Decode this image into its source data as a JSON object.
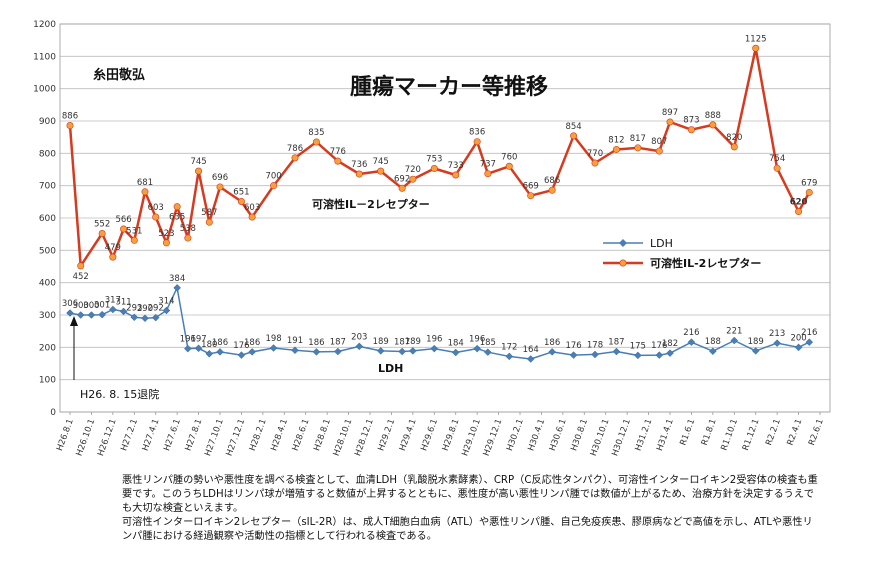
{
  "chart_data": {
    "type": "line",
    "title": "腫瘍マーカー等推移",
    "patient_name": "糸田敬弘",
    "ylim": [
      0,
      1200
    ],
    "yticks": [
      0,
      100,
      200,
      300,
      400,
      500,
      600,
      700,
      800,
      900,
      1000,
      1100,
      1200
    ],
    "grid": true,
    "legend_position": "right",
    "categories": [
      "H26.8.1",
      "H26.10.1",
      "H26.12.1",
      "H27.2.1",
      "H27.4.1",
      "H27.6.1",
      "H27.8.1",
      "H27.10.1",
      "H27.12.1",
      "H28.2.1",
      "H28.4.1",
      "H28.6.1",
      "H28.8.1",
      "H28.10.1",
      "H28.12.1",
      "H29.2.1",
      "H29.4.1",
      "H29.6.1",
      "H29.8.1",
      "H29.10.1",
      "H29.12.1",
      "H30.2.1",
      "H30.4.1",
      "H30.6.1",
      "H30.8.1",
      "H30.10.1",
      "H30.12.1",
      "H31.2.1",
      "H31.4.1",
      "R1.6.1",
      "R1.8.1",
      "R1.10.1",
      "R1.12.1",
      "R2.2.1",
      "R2.4.1",
      "R2.6.1"
    ],
    "series": [
      {
        "name": "LDH",
        "color": "#4a7fb5",
        "line_label": "LDH",
        "points": [
          {
            "x": 0,
            "y": 306
          },
          {
            "x": 0.5,
            "y": 300
          },
          {
            "x": 1,
            "y": 300
          },
          {
            "x": 1.5,
            "y": 301
          },
          {
            "x": 2,
            "y": 317
          },
          {
            "x": 2.5,
            "y": 311
          },
          {
            "x": 3,
            "y": 293
          },
          {
            "x": 3.5,
            "y": 290
          },
          {
            "x": 4,
            "y": 292
          },
          {
            "x": 4.5,
            "y": 314
          },
          {
            "x": 5,
            "y": 384
          },
          {
            "x": 5.5,
            "y": 196
          },
          {
            "x": 6,
            "y": 197
          },
          {
            "x": 6.5,
            "y": 180
          },
          {
            "x": 7,
            "y": 186
          },
          {
            "x": 8,
            "y": 176
          },
          {
            "x": 8.5,
            "y": 186
          },
          {
            "x": 9.5,
            "y": 198
          },
          {
            "x": 10.5,
            "y": 191
          },
          {
            "x": 11.5,
            "y": 186
          },
          {
            "x": 12.5,
            "y": 187
          },
          {
            "x": 13.5,
            "y": 203
          },
          {
            "x": 14.5,
            "y": 189
          },
          {
            "x": 15.5,
            "y": 187
          },
          {
            "x": 16,
            "y": 189
          },
          {
            "x": 17,
            "y": 196
          },
          {
            "x": 18,
            "y": 184
          },
          {
            "x": 19,
            "y": 196
          },
          {
            "x": 19.5,
            "y": 185
          },
          {
            "x": 20.5,
            "y": 172
          },
          {
            "x": 21.5,
            "y": 164
          },
          {
            "x": 22.5,
            "y": 186
          },
          {
            "x": 23.5,
            "y": 176
          },
          {
            "x": 24.5,
            "y": 178
          },
          {
            "x": 25.5,
            "y": 187
          },
          {
            "x": 26.5,
            "y": 175
          },
          {
            "x": 27.5,
            "y": 176
          },
          {
            "x": 28,
            "y": 182
          },
          {
            "x": 29,
            "y": 216
          },
          {
            "x": 30,
            "y": 188
          },
          {
            "x": 31,
            "y": 221
          },
          {
            "x": 32,
            "y": 189
          },
          {
            "x": 33,
            "y": 213
          },
          {
            "x": 34,
            "y": 200
          },
          {
            "x": 34.5,
            "y": 216
          }
        ]
      },
      {
        "name": "可溶性IL-2レセプター",
        "color": "#d63a1f",
        "line_label": "可溶性IL－2レセプター",
        "points": [
          {
            "x": 0,
            "y": 886
          },
          {
            "x": 0.5,
            "y": 452
          },
          {
            "x": 1.5,
            "y": 552
          },
          {
            "x": 2,
            "y": 479
          },
          {
            "x": 2.5,
            "y": 566
          },
          {
            "x": 3,
            "y": 531
          },
          {
            "x": 3.5,
            "y": 681
          },
          {
            "x": 4,
            "y": 603
          },
          {
            "x": 4.5,
            "y": 523
          },
          {
            "x": 5,
            "y": 635
          },
          {
            "x": 5.5,
            "y": 538
          },
          {
            "x": 6,
            "y": 745
          },
          {
            "x": 6.5,
            "y": 587
          },
          {
            "x": 7,
            "y": 696
          },
          {
            "x": 8,
            "y": 651
          },
          {
            "x": 8.5,
            "y": 603
          },
          {
            "x": 9.5,
            "y": 700
          },
          {
            "x": 10.5,
            "y": 786
          },
          {
            "x": 11.5,
            "y": 835
          },
          {
            "x": 12.5,
            "y": 776
          },
          {
            "x": 13.5,
            "y": 736
          },
          {
            "x": 14.5,
            "y": 745
          },
          {
            "x": 15.5,
            "y": 692
          },
          {
            "x": 16,
            "y": 720
          },
          {
            "x": 17,
            "y": 753
          },
          {
            "x": 18,
            "y": 733
          },
          {
            "x": 19,
            "y": 836
          },
          {
            "x": 19.5,
            "y": 737
          },
          {
            "x": 20.5,
            "y": 760
          },
          {
            "x": 21.5,
            "y": 669
          },
          {
            "x": 22.5,
            "y": 686
          },
          {
            "x": 23.5,
            "y": 854
          },
          {
            "x": 24.5,
            "y": 770
          },
          {
            "x": 25.5,
            "y": 812
          },
          {
            "x": 26.5,
            "y": 817
          },
          {
            "x": 27.5,
            "y": 807
          },
          {
            "x": 28,
            "y": 897
          },
          {
            "x": 29,
            "y": 873
          },
          {
            "x": 30,
            "y": 888
          },
          {
            "x": 31,
            "y": 820
          },
          {
            "x": 32,
            "y": 1125
          },
          {
            "x": 33,
            "y": 754
          },
          {
            "x": 34,
            "y": 620
          },
          {
            "x": 34.5,
            "y": 679
          }
        ]
      }
    ],
    "annotation": "H26. 8. 15退院"
  },
  "caption": [
    "悪性リンパ腫の勢いや悪性度を調べる検査として、血清LDH（乳酸脱水素酵素）、CRP（C反応性タンパク）、可溶性インターロイキン2受容体の検査も重要です。このうちLDHはリンパ球が増殖すると数値が上昇するとともに、悪性度が高い悪性リンパ腫では数値が上がるため、治療方針を決定するうえでも大切な検査といえます。",
    "可溶性インターロイキン2レセプター（sIL-2R）は、成人T細胞白血病（ATL）や悪性リンパ腫、自己免疫疾患、膠原病などで高値を示し、ATLや悪性リンパ腫における経過観察や活動性の指標として行われる検査である。"
  ]
}
